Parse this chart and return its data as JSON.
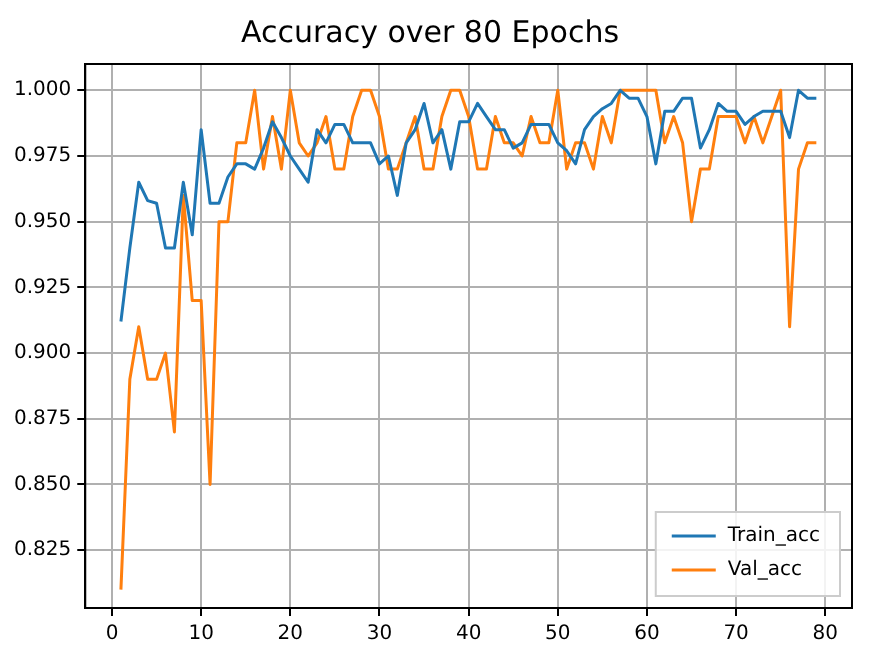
{
  "chart_data": {
    "type": "line",
    "title": "Accuracy over 80 Epochs",
    "x": [
      1,
      2,
      3,
      4,
      5,
      6,
      7,
      8,
      9,
      10,
      11,
      12,
      13,
      14,
      15,
      16,
      17,
      18,
      19,
      20,
      21,
      22,
      23,
      24,
      25,
      26,
      27,
      28,
      29,
      30,
      31,
      32,
      33,
      34,
      35,
      36,
      37,
      38,
      39,
      40,
      41,
      42,
      43,
      44,
      45,
      46,
      47,
      48,
      49,
      50,
      51,
      52,
      53,
      54,
      55,
      56,
      57,
      58,
      59,
      60,
      61,
      62,
      63,
      64,
      65,
      66,
      67,
      68,
      69,
      70,
      71,
      72,
      73,
      74,
      75,
      76,
      77,
      78,
      79
    ],
    "series": [
      {
        "name": "Train_acc",
        "color": "#1f77b4",
        "values": [
          0.912,
          0.94,
          0.965,
          0.958,
          0.957,
          0.94,
          0.94,
          0.965,
          0.945,
          0.985,
          0.957,
          0.957,
          0.967,
          0.972,
          0.972,
          0.97,
          0.978,
          0.988,
          0.982,
          0.975,
          0.97,
          0.965,
          0.985,
          0.98,
          0.987,
          0.987,
          0.98,
          0.98,
          0.98,
          0.972,
          0.975,
          0.96,
          0.98,
          0.985,
          0.995,
          0.98,
          0.985,
          0.97,
          0.988,
          0.988,
          0.995,
          0.99,
          0.985,
          0.985,
          0.978,
          0.98,
          0.987,
          0.987,
          0.987,
          0.98,
          0.977,
          0.972,
          0.985,
          0.99,
          0.993,
          0.995,
          1.0,
          0.997,
          0.997,
          0.99,
          0.972,
          0.992,
          0.992,
          0.997,
          0.997,
          0.978,
          0.985,
          0.995,
          0.992,
          0.992,
          0.987,
          0.99,
          0.992,
          0.992,
          0.992,
          0.982,
          1.0,
          0.997,
          0.997
        ]
      },
      {
        "name": "Val_acc",
        "color": "#ff7f0e",
        "values": [
          0.81,
          0.89,
          0.91,
          0.89,
          0.89,
          0.9,
          0.87,
          0.96,
          0.92,
          0.92,
          0.85,
          0.95,
          0.95,
          0.98,
          0.98,
          1.0,
          0.97,
          0.99,
          0.97,
          1.0,
          0.98,
          0.975,
          0.98,
          0.99,
          0.97,
          0.97,
          0.99,
          1.0,
          1.0,
          0.99,
          0.97,
          0.97,
          0.98,
          0.99,
          0.97,
          0.97,
          0.99,
          1.0,
          1.0,
          0.99,
          0.97,
          0.97,
          0.99,
          0.98,
          0.98,
          0.975,
          0.99,
          0.98,
          0.98,
          1.0,
          0.97,
          0.98,
          0.98,
          0.97,
          0.99,
          0.98,
          1.0,
          1.0,
          1.0,
          1.0,
          1.0,
          0.98,
          0.99,
          0.98,
          0.95,
          0.97,
          0.97,
          0.99,
          0.99,
          0.99,
          0.98,
          0.99,
          0.98,
          0.99,
          1.0,
          0.91,
          0.97,
          0.98,
          0.98
        ]
      }
    ],
    "xlim": [
      -3,
      83
    ],
    "xticks": [
      0,
      10,
      20,
      30,
      40,
      50,
      60,
      70,
      80
    ],
    "ylim": [
      0.803,
      1.01
    ],
    "yticks": [
      {
        "value": 0.825,
        "label": "0.825"
      },
      {
        "value": 0.85,
        "label": "0.850"
      },
      {
        "value": 0.875,
        "label": "0.875"
      },
      {
        "value": 0.9,
        "label": "0.900"
      },
      {
        "value": 0.925,
        "label": "0.925"
      },
      {
        "value": 0.95,
        "label": "0.950"
      },
      {
        "value": 0.975,
        "label": "0.975"
      },
      {
        "value": 1.0,
        "label": "1.000"
      }
    ],
    "grid": true,
    "legend": "bottom right",
    "marker": "none",
    "line_style": "solid"
  }
}
